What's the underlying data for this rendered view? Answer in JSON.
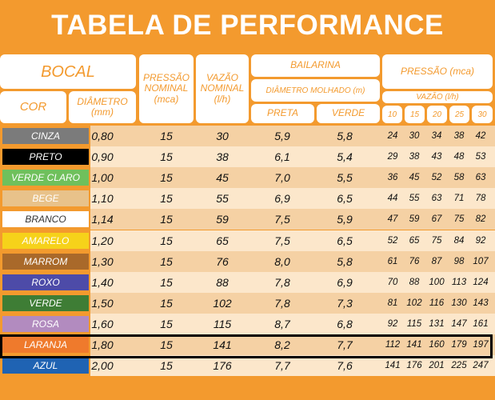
{
  "title": "TABELA DE PERFORMANCE",
  "headers": {
    "bocal": "BOCAL",
    "cor": "COR",
    "diametro": "DIÂMETRO (mm)",
    "pressao_nominal": "PRESSÃO NOMINAL (mca)",
    "vazao_nominal": "VAZÃO NOMINAL (l/h)",
    "bailarina": "BAILARINA",
    "diametro_molhado": "DIÂMETRO MOLHADO (m)",
    "preta": "PRETA",
    "verde": "VERDE",
    "pressao_mca": "PRESSÃO (mca)",
    "vazao_lh": "VAZÃO (l/h)",
    "pressures": [
      "10",
      "15",
      "20",
      "25",
      "30"
    ]
  },
  "rows": [
    {
      "cor": "CINZA",
      "swatch": "#7B7B7B",
      "text": "#ffffff",
      "diametro": "0,80",
      "pressao": "15",
      "vazao": "30",
      "preta": "5,9",
      "verde": "5,8",
      "vazoes": [
        "24",
        "30",
        "34",
        "38",
        "42"
      ]
    },
    {
      "cor": "PRETO",
      "swatch": "#000000",
      "text": "#ffffff",
      "diametro": "0,90",
      "pressao": "15",
      "vazao": "38",
      "preta": "6,1",
      "verde": "5,4",
      "vazoes": [
        "29",
        "38",
        "43",
        "48",
        "53"
      ]
    },
    {
      "cor": "VERDE CLARO",
      "swatch": "#6FC05C",
      "text": "#ffffff",
      "diametro": "1,00",
      "pressao": "15",
      "vazao": "45",
      "preta": "7,0",
      "verde": "5,5",
      "vazoes": [
        "36",
        "45",
        "52",
        "58",
        "63"
      ]
    },
    {
      "cor": "BEGE",
      "swatch": "#E8C28A",
      "text": "#ffffff",
      "diametro": "1,10",
      "pressao": "15",
      "vazao": "55",
      "preta": "6,9",
      "verde": "6,5",
      "vazoes": [
        "44",
        "55",
        "63",
        "71",
        "78"
      ]
    },
    {
      "cor": "BRANCO",
      "swatch": "#ffffff",
      "text": "#333333",
      "diametro": "1,14",
      "pressao": "15",
      "vazao": "59",
      "preta": "7,5",
      "verde": "5,9",
      "vazoes": [
        "47",
        "59",
        "67",
        "75",
        "82"
      ]
    },
    {
      "cor": "AMARELO",
      "swatch": "#F6D21A",
      "text": "#ffffff",
      "diametro": "1,20",
      "pressao": "15",
      "vazao": "65",
      "preta": "7,5",
      "verde": "6,5",
      "vazoes": [
        "52",
        "65",
        "75",
        "84",
        "92"
      ]
    },
    {
      "cor": "MARROM",
      "swatch": "#A9692A",
      "text": "#ffffff",
      "diametro": "1,30",
      "pressao": "15",
      "vazao": "76",
      "preta": "8,0",
      "verde": "5,8",
      "vazoes": [
        "61",
        "76",
        "87",
        "98",
        "107"
      ]
    },
    {
      "cor": "ROXO",
      "swatch": "#4D4BA8",
      "text": "#ffffff",
      "diametro": "1,40",
      "pressao": "15",
      "vazao": "88",
      "preta": "7,8",
      "verde": "6,9",
      "vazoes": [
        "70",
        "88",
        "100",
        "113",
        "124"
      ]
    },
    {
      "cor": "VERDE",
      "swatch": "#3E7D35",
      "text": "#ffffff",
      "diametro": "1,50",
      "pressao": "15",
      "vazao": "102",
      "preta": "7,8",
      "verde": "7,3",
      "vazoes": [
        "81",
        "102",
        "116",
        "130",
        "143"
      ]
    },
    {
      "cor": "ROSA",
      "swatch": "#B28BBF",
      "text": "#ffffff",
      "diametro": "1,60",
      "pressao": "15",
      "vazao": "115",
      "preta": "8,7",
      "verde": "6,8",
      "vazoes": [
        "92",
        "115",
        "131",
        "147",
        "161"
      ]
    },
    {
      "cor": "LARANJA",
      "swatch": "#EF7A2C",
      "text": "#ffffff",
      "diametro": "1,80",
      "pressao": "15",
      "vazao": "141",
      "preta": "8,2",
      "verde": "7,7",
      "vazoes": [
        "112",
        "141",
        "160",
        "179",
        "197"
      ]
    },
    {
      "cor": "AZUL",
      "swatch": "#1F63B3",
      "text": "#ffffff",
      "diametro": "2,00",
      "pressao": "15",
      "vazao": "176",
      "preta": "7,7",
      "verde": "7,6",
      "vazoes": [
        "141",
        "176",
        "201",
        "225",
        "247"
      ]
    }
  ],
  "row_shading": [
    "#F5D1A4",
    "#FCE7CB"
  ],
  "highlight_row": "LARANJA"
}
